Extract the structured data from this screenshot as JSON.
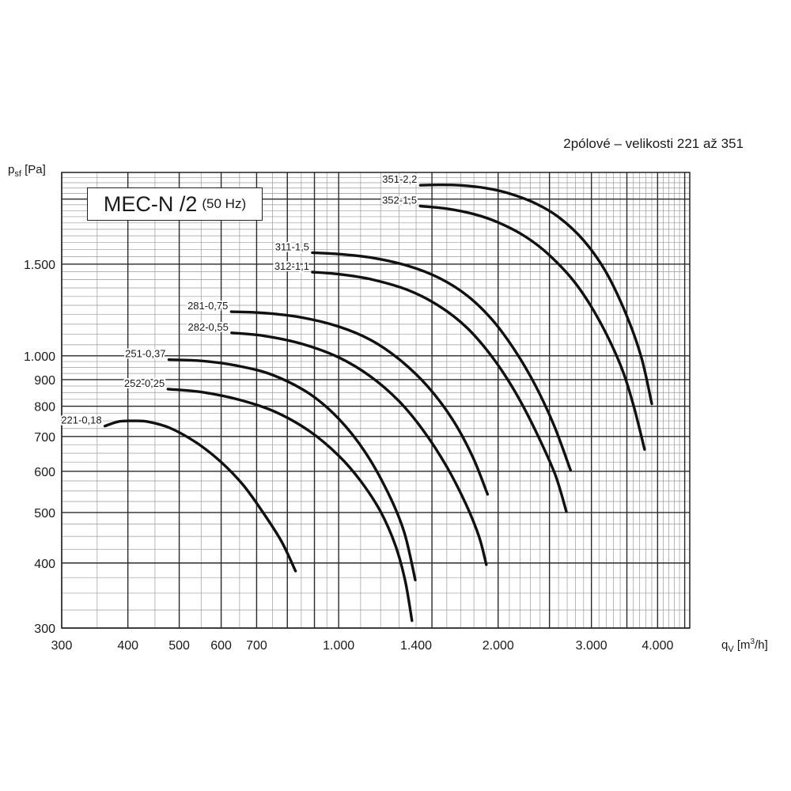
{
  "chart_data": {
    "type": "line",
    "title": "MEC-N /2",
    "title_note": "(50 Hz)",
    "subtitle": "2pólové – velikosti 221 až 351",
    "ylabel": {
      "symbol": "p",
      "sub": "sf",
      "unit": "[Pa]"
    },
    "xlabel": {
      "symbol": "q",
      "sub": "V",
      "unit_pre": "[m",
      "unit_sup": "3",
      "unit_post": "/h]"
    },
    "x_scale": "log",
    "y_scale": "log",
    "xlim": [
      300,
      4600
    ],
    "ylim": [
      300,
      2250
    ],
    "grid": true,
    "x_tick_labels": [
      {
        "v": 300,
        "label": "300"
      },
      {
        "v": 400,
        "label": "400"
      },
      {
        "v": 500,
        "label": "500"
      },
      {
        "v": 600,
        "label": "600"
      },
      {
        "v": 700,
        "label": "700"
      },
      {
        "v": 1000,
        "label": "1.000"
      },
      {
        "v": 1400,
        "label": "1.400"
      },
      {
        "v": 2000,
        "label": "2.000"
      },
      {
        "v": 3000,
        "label": "3.000"
      },
      {
        "v": 4000,
        "label": "4.000"
      }
    ],
    "y_tick_labels": [
      {
        "v": 300,
        "label": "300"
      },
      {
        "v": 400,
        "label": "400"
      },
      {
        "v": 500,
        "label": "500"
      },
      {
        "v": 600,
        "label": "600"
      },
      {
        "v": 700,
        "label": "700"
      },
      {
        "v": 800,
        "label": "800"
      },
      {
        "v": 900,
        "label": "900"
      },
      {
        "v": 1000,
        "label": "1.000"
      },
      {
        "v": 1500,
        "label": "1.500"
      }
    ],
    "series": [
      {
        "name": "221-0,18",
        "x": [
          362,
          385,
          410,
          437,
          480,
          540,
          600,
          660,
          720,
          780,
          829
        ],
        "y": [
          733,
          748,
          750,
          747,
          727,
          680,
          625,
          565,
          500,
          440,
          386
        ]
      },
      {
        "name": "252-0,25",
        "x": [
          476,
          550,
          650,
          760,
          880,
          1000,
          1100,
          1200,
          1280,
          1335,
          1375
        ],
        "y": [
          863,
          852,
          823,
          780,
          717,
          643,
          575,
          502,
          432,
          370,
          310
        ]
      },
      {
        "name": "251-0,37",
        "x": [
          478,
          550,
          640,
          750,
          880,
          1000,
          1120,
          1240,
          1330,
          1395
        ],
        "y": [
          983,
          978,
          958,
          919,
          846,
          757,
          655,
          545,
          458,
          371
        ]
      },
      {
        "name": "282-0,55",
        "x": [
          628,
          720,
          850,
          1000,
          1150,
          1300,
          1450,
          1600,
          1740,
          1840,
          1900
        ],
        "y": [
          1107,
          1093,
          1055,
          993,
          912,
          818,
          715,
          612,
          518,
          450,
          397
        ]
      },
      {
        "name": "281-0,75",
        "x": [
          627,
          720,
          850,
          1000,
          1150,
          1300,
          1470,
          1640,
          1790,
          1910
        ],
        "y": [
          1215,
          1209,
          1185,
          1138,
          1072,
          985,
          875,
          755,
          640,
          542
        ]
      },
      {
        "name": "312-1,1",
        "x": [
          892,
          1000,
          1150,
          1350,
          1550,
          1750,
          1950,
          2150,
          2350,
          2560,
          2690
        ],
        "y": [
          1448,
          1435,
          1403,
          1338,
          1245,
          1130,
          994,
          855,
          720,
          593,
          502
        ]
      },
      {
        "name": "311-1,5",
        "x": [
          892,
          1000,
          1150,
          1350,
          1550,
          1750,
          1950,
          2150,
          2350,
          2550,
          2740
        ],
        "y": [
          1578,
          1568,
          1544,
          1489,
          1410,
          1304,
          1172,
          1025,
          878,
          735,
          603
        ]
      },
      {
        "name": "352-1,5",
        "x": [
          1425,
          1600,
          1800,
          2000,
          2250,
          2500,
          2800,
          3100,
          3400,
          3600,
          3780
        ],
        "y": [
          1939,
          1917,
          1871,
          1804,
          1695,
          1560,
          1378,
          1172,
          963,
          805,
          661
        ]
      },
      {
        "name": "351-2,2",
        "x": [
          1426,
          1550,
          1700,
          1900,
          2100,
          2350,
          2600,
          2900,
          3200,
          3500,
          3730,
          3900
        ],
        "y": [
          2126,
          2130,
          2125,
          2099,
          2050,
          1963,
          1847,
          1666,
          1445,
          1192,
          991,
          809
        ]
      }
    ]
  }
}
